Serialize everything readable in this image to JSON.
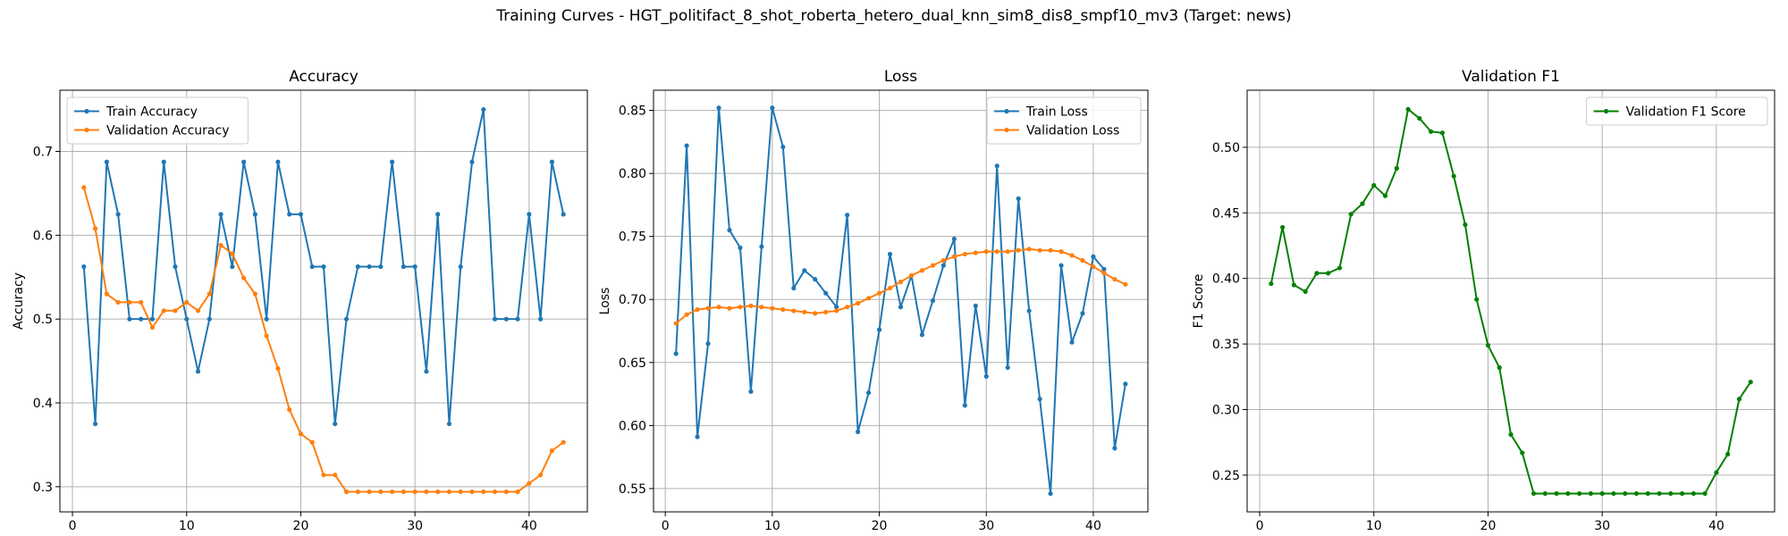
{
  "figure": {
    "suptitle": "Training Curves - HGT_politifact_8_shot_roberta_hetero_dual_knn_sim8_dis8_smpf10_mv3 (Target: news)"
  },
  "chart_data": [
    {
      "type": "line",
      "title": "Accuracy",
      "xlabel": "Epoch",
      "ylabel": "Accuracy",
      "xlim": [
        -1.1,
        45.1
      ],
      "ylim": [
        0.27,
        0.773
      ],
      "xticks": [
        0,
        10,
        20,
        30,
        40
      ],
      "yticks": [
        0.3,
        0.4,
        0.5,
        0.6,
        0.7
      ],
      "ytick_decimals": 1,
      "grid": true,
      "legend": "upper left",
      "x": [
        1,
        2,
        3,
        4,
        5,
        6,
        7,
        8,
        9,
        10,
        11,
        12,
        13,
        14,
        15,
        16,
        17,
        18,
        19,
        20,
        21,
        22,
        23,
        24,
        25,
        26,
        27,
        28,
        29,
        30,
        31,
        32,
        33,
        34,
        35,
        36,
        37,
        38,
        39,
        40,
        41,
        42,
        43
      ],
      "series": [
        {
          "name": "Train Accuracy",
          "color": "#1f77b4",
          "values": [
            0.5625,
            0.375,
            0.6875,
            0.625,
            0.5,
            0.5,
            0.5,
            0.6875,
            0.5625,
            0.5,
            0.4375,
            0.5,
            0.625,
            0.5625,
            0.6875,
            0.625,
            0.5,
            0.6875,
            0.625,
            0.625,
            0.5625,
            0.5625,
            0.375,
            0.5,
            0.5625,
            0.5625,
            0.5625,
            0.6875,
            0.5625,
            0.5625,
            0.4375,
            0.625,
            0.375,
            0.5625,
            0.6875,
            0.75,
            0.5,
            0.5,
            0.5,
            0.625,
            0.5,
            0.6875,
            0.625
          ]
        },
        {
          "name": "Validation Accuracy",
          "color": "#ff7f0e",
          "values": [
            0.657,
            0.608,
            0.53,
            0.52,
            0.52,
            0.52,
            0.49,
            0.51,
            0.51,
            0.52,
            0.51,
            0.53,
            0.588,
            0.578,
            0.549,
            0.53,
            0.48,
            0.441,
            0.392,
            0.363,
            0.353,
            0.314,
            0.314,
            0.294,
            0.294,
            0.294,
            0.294,
            0.294,
            0.294,
            0.294,
            0.294,
            0.294,
            0.294,
            0.294,
            0.294,
            0.294,
            0.294,
            0.294,
            0.294,
            0.304,
            0.314,
            0.343,
            0.353
          ]
        }
      ]
    },
    {
      "type": "line",
      "title": "Loss",
      "xlabel": "Epoch",
      "ylabel": "Loss",
      "xlim": [
        -1.1,
        45.1
      ],
      "ylim": [
        0.5315,
        0.866
      ],
      "xticks": [
        0,
        10,
        20,
        30,
        40
      ],
      "yticks": [
        0.55,
        0.6,
        0.65,
        0.7,
        0.75,
        0.8,
        0.85
      ],
      "ytick_decimals": 2,
      "grid": true,
      "legend": "upper right",
      "x": [
        1,
        2,
        3,
        4,
        5,
        6,
        7,
        8,
        9,
        10,
        11,
        12,
        13,
        14,
        15,
        16,
        17,
        18,
        19,
        20,
        21,
        22,
        23,
        24,
        25,
        26,
        27,
        28,
        29,
        30,
        31,
        32,
        33,
        34,
        35,
        36,
        37,
        38,
        39,
        40,
        41,
        42,
        43
      ],
      "series": [
        {
          "name": "Train Loss",
          "color": "#1f77b4",
          "values": [
            0.657,
            0.822,
            0.591,
            0.665,
            0.852,
            0.755,
            0.741,
            0.627,
            0.742,
            0.852,
            0.821,
            0.709,
            0.723,
            0.716,
            0.705,
            0.694,
            0.767,
            0.595,
            0.626,
            0.676,
            0.736,
            0.694,
            0.719,
            0.672,
            0.699,
            0.727,
            0.748,
            0.616,
            0.695,
            0.639,
            0.806,
            0.646,
            0.78,
            0.691,
            0.621,
            0.546,
            0.727,
            0.666,
            0.689,
            0.734,
            0.724,
            0.582,
            0.633
          ]
        },
        {
          "name": "Validation Loss",
          "color": "#ff7f0e",
          "values": [
            0.681,
            0.688,
            0.692,
            0.693,
            0.694,
            0.693,
            0.694,
            0.695,
            0.694,
            0.693,
            0.692,
            0.691,
            0.69,
            0.689,
            0.69,
            0.691,
            0.694,
            0.697,
            0.701,
            0.705,
            0.709,
            0.714,
            0.719,
            0.723,
            0.727,
            0.731,
            0.734,
            0.736,
            0.737,
            0.738,
            0.738,
            0.738,
            0.739,
            0.74,
            0.739,
            0.739,
            0.738,
            0.735,
            0.731,
            0.726,
            0.721,
            0.716,
            0.712
          ]
        }
      ]
    },
    {
      "type": "line",
      "title": "Validation F1",
      "xlabel": "Epoch",
      "ylabel": "F1 Score",
      "xlim": [
        -1.1,
        45.1
      ],
      "ylim": [
        0.222,
        0.5435
      ],
      "xticks": [
        0,
        10,
        20,
        30,
        40
      ],
      "yticks": [
        0.25,
        0.3,
        0.35,
        0.4,
        0.45,
        0.5
      ],
      "ytick_decimals": 2,
      "grid": true,
      "legend": "upper right",
      "x": [
        1,
        2,
        3,
        4,
        5,
        6,
        7,
        8,
        9,
        10,
        11,
        12,
        13,
        14,
        15,
        16,
        17,
        18,
        19,
        20,
        21,
        22,
        23,
        24,
        25,
        26,
        27,
        28,
        29,
        30,
        31,
        32,
        33,
        34,
        35,
        36,
        37,
        38,
        39,
        40,
        41,
        42,
        43
      ],
      "series": [
        {
          "name": "Validation F1 Score",
          "color": "#008000",
          "values": [
            0.396,
            0.439,
            0.395,
            0.39,
            0.404,
            0.404,
            0.408,
            0.449,
            0.457,
            0.471,
            0.463,
            0.484,
            0.529,
            0.522,
            0.512,
            0.511,
            0.478,
            0.441,
            0.384,
            0.349,
            0.332,
            0.281,
            0.267,
            0.236,
            0.236,
            0.236,
            0.236,
            0.236,
            0.236,
            0.236,
            0.236,
            0.236,
            0.236,
            0.236,
            0.236,
            0.236,
            0.236,
            0.236,
            0.236,
            0.252,
            0.266,
            0.308,
            0.321
          ]
        }
      ]
    }
  ]
}
